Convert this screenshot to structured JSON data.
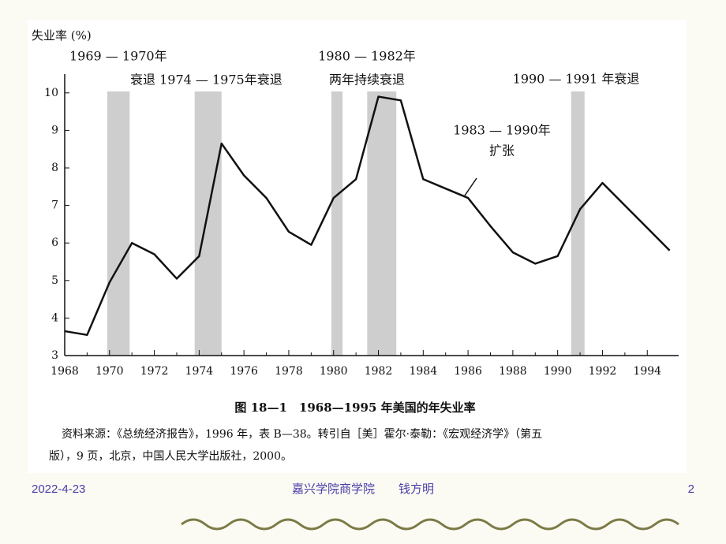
{
  "chart_data": {
    "type": "line",
    "y_axis_label": "失业率 (%)",
    "x": [
      1968,
      1969,
      1970,
      1971,
      1972,
      1973,
      1974,
      1975,
      1976,
      1977,
      1978,
      1979,
      1980,
      1981,
      1982,
      1983,
      1984,
      1985,
      1986,
      1987,
      1988,
      1989,
      1990,
      1991,
      1992,
      1993,
      1994,
      1995
    ],
    "values": [
      3.65,
      3.55,
      4.95,
      6.0,
      5.7,
      5.05,
      5.65,
      8.65,
      7.8,
      7.2,
      6.3,
      5.95,
      7.2,
      7.7,
      9.9,
      9.8,
      7.7,
      7.45,
      7.2,
      6.45,
      5.75,
      5.45,
      5.65,
      6.9,
      7.6,
      7.0,
      6.4,
      5.8
    ],
    "color": "#111111",
    "shaded_periods": [
      [
        1969.9,
        1970.9
      ],
      [
        1973.8,
        1975.0
      ],
      [
        1979.9,
        1980.4
      ],
      [
        1981.5,
        1982.8
      ],
      [
        1990.6,
        1991.2
      ]
    ],
    "xlim": [
      1968,
      1995.4
    ],
    "ylim": [
      3,
      10.5
    ],
    "xticks": [
      1968,
      1970,
      1972,
      1974,
      1976,
      1978,
      1980,
      1982,
      1984,
      1986,
      1988,
      1990,
      1992,
      1994
    ],
    "yticks": [
      3,
      4,
      5,
      6,
      7,
      8,
      9,
      10
    ],
    "annotations": [
      "1969 — 1970年",
      "衰退 1974 — 1975年衰退",
      "1980 — 1982年",
      "两年持续衰退",
      "1990 — 1991 年衰退",
      "1983 — 1990年",
      "扩张"
    ],
    "caption": "图 18—1　1968—1995 年美国的年失业率",
    "source": [
      "资料来源：《总统经济报告》，1996 年，表 B—38。转引自［美］霍尔·泰勒：《宏观经济学》（第五",
      "版），9 页，北京，中国人民大学出版社，2000。"
    ]
  },
  "footer": {
    "date": "2022-4-23",
    "author": "嘉兴学院商学院　　钱方明",
    "page": "2"
  }
}
